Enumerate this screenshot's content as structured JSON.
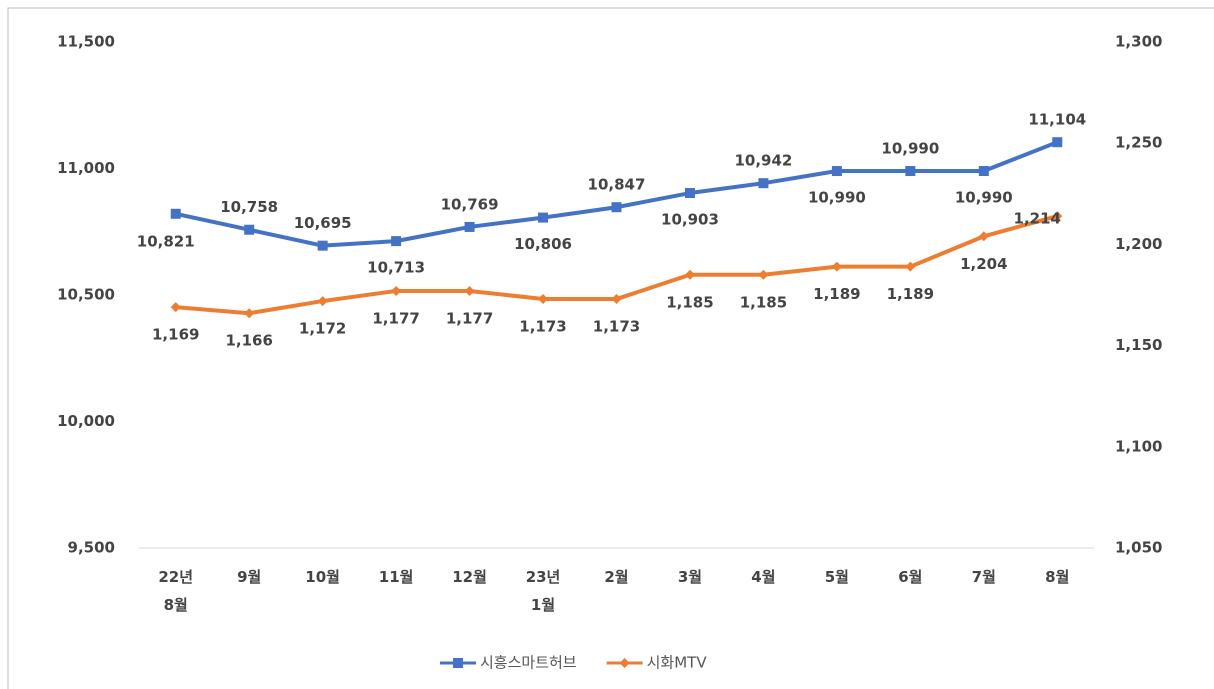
{
  "chart_data": {
    "type": "line",
    "categories": [
      "22년 8월",
      "9월",
      "10월",
      "11월",
      "12월",
      "23년 1월",
      "2월",
      "3월",
      "4월",
      "5월",
      "6월",
      "7월",
      "8월"
    ],
    "series": [
      {
        "name": "시흥스마트허브",
        "color": "#4472c4",
        "marker": "square",
        "values": [
          10821,
          10758,
          10695,
          10713,
          10769,
          10806,
          10847,
          10903,
          10942,
          10990,
          10990,
          10990,
          11104
        ],
        "value_labels": [
          "10,821",
          "10,758",
          "10,695",
          "10,713",
          "10,769",
          "10,806",
          "10,847",
          "10,903",
          "10,942",
          "10,990",
          "10,990",
          "10,990",
          "11,104"
        ]
      },
      {
        "name": "시화MTV",
        "color": "#ed7d31",
        "marker": "diamond",
        "axis": "y2",
        "values": [
          1169,
          1166,
          1172,
          1177,
          1177,
          1173,
          1173,
          1185,
          1185,
          1189,
          1189,
          1204,
          1214
        ],
        "value_labels": [
          "1,169",
          "1,166",
          "1,172",
          "1,177",
          "1,177",
          "1,173",
          "1,173",
          "1,185",
          "1,185",
          "1,189",
          "1,189",
          "1,204",
          "1,214"
        ]
      }
    ],
    "ylim": [
      9500,
      11500
    ],
    "yticks": [
      {
        "value": 9500,
        "label": "9,500"
      },
      {
        "value": 10000,
        "label": "10,000"
      },
      {
        "value": 10500,
        "label": "10,500"
      },
      {
        "value": 11000,
        "label": "11,000"
      },
      {
        "value": 11500,
        "label": "11,500"
      }
    ],
    "y2lim": [
      1050,
      1300
    ],
    "y2ticks": [
      {
        "value": 1050,
        "label": "1,050"
      },
      {
        "value": 1100,
        "label": "1,100"
      },
      {
        "value": 1150,
        "label": "1,150"
      },
      {
        "value": 1200,
        "label": "1,200"
      },
      {
        "value": 1250,
        "label": "1,250"
      },
      {
        "value": 1300,
        "label": "1,300"
      }
    ],
    "grid": false,
    "legend": "bottom"
  }
}
